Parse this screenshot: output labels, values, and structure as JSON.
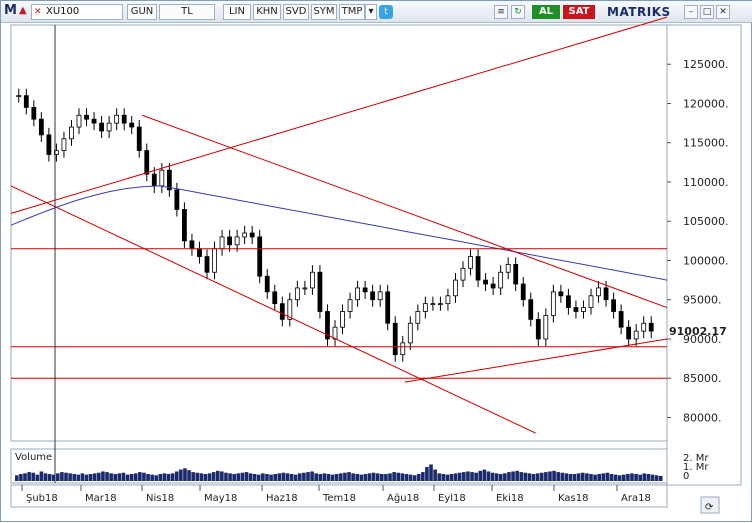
{
  "toolbar": {
    "logo": "M",
    "symbol": "XU100",
    "buttons": [
      "GUN",
      "TL",
      "LIN",
      "KHN",
      "SVD",
      "SYM",
      "TMP"
    ],
    "buy_label": "AL",
    "sell_label": "SAT",
    "brand": "MATRIKS",
    "colors": {
      "buy": "#1e8f27",
      "sell": "#c8161c",
      "brand": "#1b2a6b"
    }
  },
  "chart_data": [
    {
      "type": "candlestick",
      "title": "",
      "symbol": "XU100",
      "x": [
        "Şub18",
        "Mar18",
        "Nis18",
        "May18",
        "Haz18",
        "Tem18",
        "Ağu18",
        "Eyl18",
        "Eki18",
        "Kas18",
        "Ara18"
      ],
      "ylim": [
        77000,
        130000
      ],
      "yticks": [
        80000,
        85000,
        90000,
        95000,
        100000,
        105000,
        110000,
        115000,
        120000,
        125000
      ],
      "ytick_labels": [
        "80000.",
        "85000.",
        "90000.",
        "95000.",
        "100000.",
        "105000.",
        "110000.",
        "115000.",
        "120000.",
        "125000."
      ],
      "last_value": "91002.17",
      "close_series": [
        {
          "month": "Şub18",
          "values": [
            121000,
            119500,
            118000,
            116000,
            113500,
            114000,
            115500,
            117000
          ]
        },
        {
          "month": "Mar18",
          "values": [
            118500,
            118000,
            117500,
            116500,
            117500,
            118500,
            117500,
            117000
          ]
        },
        {
          "month": "Nis18",
          "values": [
            114000,
            111000,
            109500,
            111500,
            109000,
            106500,
            102500,
            101500
          ]
        },
        {
          "month": "May18",
          "values": [
            100500,
            98500,
            101500,
            103000,
            102000,
            103000,
            103500,
            103000
          ]
        },
        {
          "month": "Haz18",
          "values": [
            98000,
            96000,
            94500,
            92500,
            95000,
            96500,
            96500,
            98500
          ]
        },
        {
          "month": "Tem18",
          "values": [
            93500,
            90000,
            91500,
            93500,
            95000,
            96500,
            96000,
            95000
          ]
        },
        {
          "month": "Ağu18",
          "values": [
            96000,
            92000,
            88000,
            89500,
            92000,
            93500,
            94500,
            94500
          ]
        },
        {
          "month": "Eyl18",
          "values": [
            94500,
            95500,
            97500,
            99000,
            100500,
            97500,
            97000,
            96500
          ]
        },
        {
          "month": "Eki18",
          "values": [
            98500,
            99500,
            97000,
            95000,
            92500,
            90000,
            93000,
            96000
          ]
        },
        {
          "month": "Kas18",
          "values": [
            95500,
            94000,
            93500,
            94000,
            95500,
            96500,
            95000,
            93500
          ]
        },
        {
          "month": "Ara18",
          "values": [
            91500,
            90000,
            91000,
            92000,
            91000
          ]
        }
      ],
      "moving_average": {
        "from": 104500,
        "peak": 109500,
        "to": 97500,
        "color": "#3b3bb0"
      },
      "trend_lines": [
        {
          "from": [
            0,
            106000
          ],
          "to": [
            1,
            131000
          ],
          "color": "#cc0000"
        },
        {
          "from": [
            0.2,
            118500
          ],
          "to": [
            1,
            94000
          ],
          "color": "#cc0000"
        },
        {
          "from": [
            0,
            109500
          ],
          "to": [
            0.8,
            78000
          ],
          "color": "#cc0000"
        },
        {
          "from": [
            0.6,
            84500
          ],
          "to": [
            1,
            90000
          ],
          "color": "#cc0000"
        }
      ],
      "horizontal_lines": [
        101500,
        89000,
        85000
      ],
      "grid": false
    },
    {
      "type": "bar",
      "title": "Volume",
      "yticks": [
        "2. Mr",
        "1. Mr",
        "0"
      ],
      "values": [
        0.45,
        0.55,
        0.6,
        0.7,
        0.65,
        0.5,
        0.75,
        0.6,
        0.55,
        0.5,
        0.6,
        0.7,
        0.65,
        0.6,
        0.55,
        0.5,
        0.6,
        0.5,
        0.55,
        0.6,
        0.65,
        0.75,
        0.7,
        0.6,
        0.55,
        0.6,
        0.65,
        0.5,
        0.55,
        0.6,
        0.7,
        0.65,
        0.55,
        0.5,
        0.45,
        0.55,
        0.6,
        0.55,
        0.6,
        0.75,
        0.9,
        1.0,
        0.85,
        0.7,
        0.65,
        0.6,
        0.55,
        0.6,
        0.7,
        0.8,
        0.75,
        0.65,
        0.6,
        0.55,
        0.6,
        0.65,
        0.7,
        0.6,
        0.55,
        0.5,
        0.6,
        0.55,
        0.5,
        0.55,
        0.6,
        0.65,
        0.6,
        0.55,
        0.5,
        0.6,
        0.65,
        0.7,
        0.75,
        0.6,
        0.55,
        0.6,
        0.55,
        0.5,
        0.55,
        0.6,
        0.65,
        0.7,
        0.6,
        0.55,
        0.5,
        0.55,
        0.6,
        0.65,
        0.6,
        0.55,
        0.55,
        0.6,
        0.7,
        0.65,
        0.6,
        0.55,
        0.5,
        0.45,
        0.55,
        0.7,
        1.1,
        1.3,
        0.9,
        0.6,
        0.55,
        0.5,
        0.55,
        0.6,
        0.65,
        0.7,
        0.75,
        0.7,
        0.65,
        0.8,
        0.9,
        0.75,
        0.65,
        0.6,
        0.55,
        0.6,
        0.7,
        0.75,
        0.8,
        0.7,
        0.65,
        0.6,
        0.55,
        0.6,
        0.65,
        0.7,
        0.75,
        0.8,
        0.7,
        0.65,
        0.6,
        0.55,
        0.55,
        0.6,
        0.65,
        0.6,
        0.55,
        0.5,
        0.55,
        0.6,
        0.65,
        0.55,
        0.5,
        0.45,
        0.5,
        0.55,
        0.6,
        0.55,
        0.5,
        0.6,
        0.55,
        0.5,
        0.45,
        0.4
      ]
    }
  ]
}
